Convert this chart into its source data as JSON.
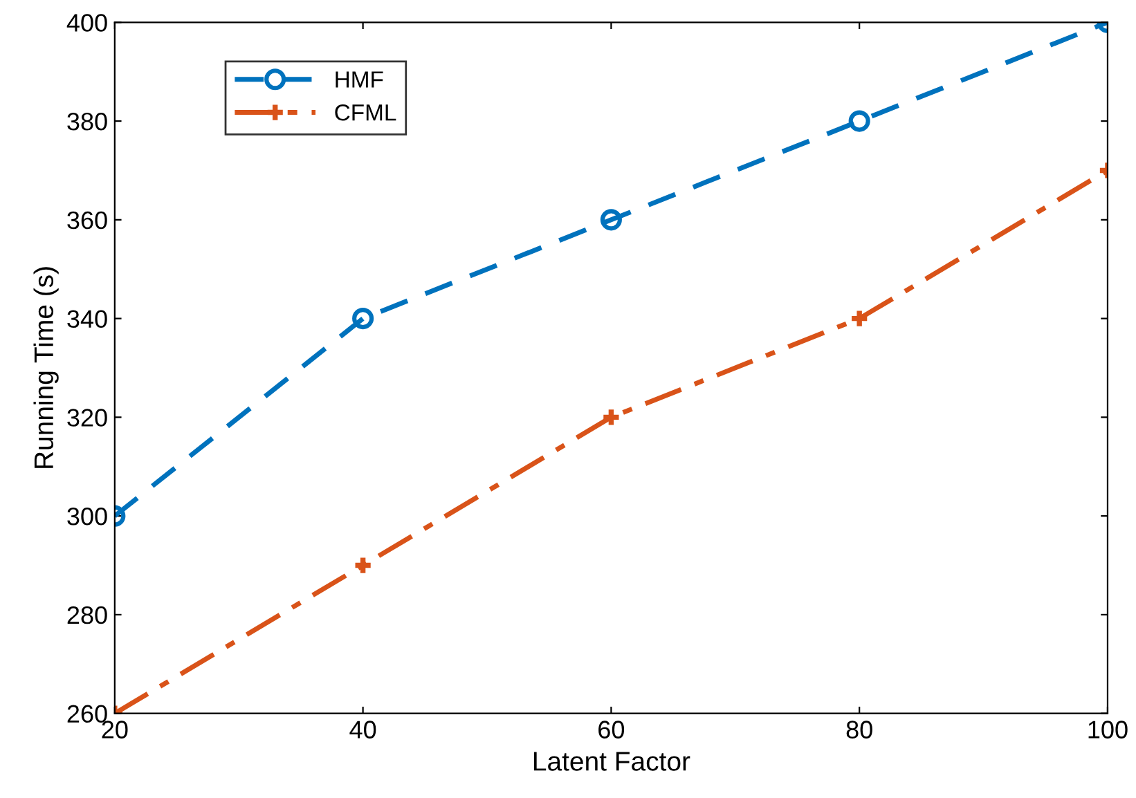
{
  "chart_data": {
    "type": "line",
    "xlabel": "Latent Factor",
    "ylabel": "Running Time (s)",
    "x": [
      20,
      40,
      60,
      80,
      100
    ],
    "series": [
      {
        "name": "HMF",
        "color": "#0072bd",
        "values": [
          300,
          340,
          360,
          380,
          400
        ],
        "marker": "circle",
        "line_style": "dashed"
      },
      {
        "name": "CFML",
        "color": "#d95319",
        "values": [
          260,
          290,
          320,
          340,
          370
        ],
        "marker": "cross",
        "line_style": "dashdot"
      }
    ],
    "xlim": [
      20,
      100
    ],
    "xticks": [
      20,
      40,
      60,
      80,
      100
    ],
    "ylim": [
      260,
      400
    ],
    "yticks": [
      260,
      280,
      300,
      320,
      340,
      360,
      380,
      400
    ],
    "grid": false,
    "legend": "top left"
  }
}
